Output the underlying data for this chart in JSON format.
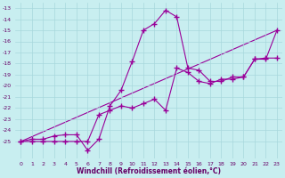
{
  "xlabel": "Windchill (Refroidissement éolien,°C)",
  "background_color": "#c8eef0",
  "grid_color": "#a8d8dc",
  "line_color": "#990099",
  "xlim": [
    -0.5,
    23.5
  ],
  "ylim": [
    -26.5,
    -12.5
  ],
  "yticks": [
    -25,
    -24,
    -23,
    -22,
    -21,
    -20,
    -19,
    -18,
    -17,
    -16,
    -15,
    -14,
    -13
  ],
  "xticks": [
    0,
    1,
    2,
    3,
    4,
    5,
    6,
    7,
    8,
    9,
    10,
    11,
    12,
    13,
    14,
    15,
    16,
    17,
    18,
    19,
    20,
    21,
    22,
    23
  ],
  "line1_x": [
    0,
    1,
    2,
    3,
    4,
    5,
    6,
    7,
    8,
    9,
    10,
    11,
    12,
    13,
    14,
    15,
    16,
    17,
    18,
    19,
    20,
    21,
    22,
    23
  ],
  "line1_y": [
    -25.0,
    -24.8,
    -24.8,
    -24.5,
    -24.4,
    -24.4,
    -25.8,
    -24.8,
    -21.8,
    -20.4,
    -17.8,
    -15.0,
    -14.4,
    -13.2,
    -13.8,
    -18.4,
    -18.6,
    -19.6,
    -19.6,
    -19.2,
    -19.2,
    -17.6,
    -17.6,
    -15.0
  ],
  "line2_x": [
    0,
    1,
    2,
    3,
    4,
    5,
    6,
    7,
    8,
    9,
    10,
    11,
    12,
    13,
    14,
    15,
    16,
    17,
    18,
    19,
    20,
    21,
    22,
    23
  ],
  "line2_y": [
    -25.0,
    -25.0,
    -25.0,
    -25.0,
    -25.0,
    -25.0,
    -25.0,
    -22.6,
    -22.2,
    -21.8,
    -22.0,
    -21.6,
    -21.2,
    -22.2,
    -18.4,
    -18.8,
    -19.6,
    -19.8,
    -19.4,
    -19.4,
    -19.2,
    -17.6,
    -17.5,
    -17.5
  ],
  "line3_x": [
    0,
    23
  ],
  "line3_y": [
    -25.0,
    -15.0
  ],
  "marker": "+",
  "markersize": 4,
  "linewidth": 0.8
}
